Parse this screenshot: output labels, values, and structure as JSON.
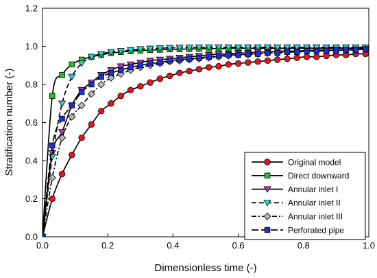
{
  "chart_data": {
    "type": "line",
    "xlabel": "Dimensionless time (-)",
    "ylabel": "Stratification number (-)",
    "xlim": [
      0.0,
      1.0
    ],
    "ylim": [
      0.0,
      1.2
    ],
    "xticks": [
      0.0,
      0.2,
      0.4,
      0.6,
      0.8,
      1.0
    ],
    "xtick_labels": [
      "0.0",
      "0.2",
      "0.4",
      "0.6",
      "0.8",
      "1.0"
    ],
    "yticks": [
      0.0,
      0.2,
      0.4,
      0.6,
      0.8,
      1.0,
      1.2
    ],
    "ytick_labels": [
      "0.0",
      "0.2",
      "0.4",
      "0.6",
      "0.8",
      "1.0",
      "1.2"
    ],
    "grid": false,
    "legend_position": "bottom-right",
    "series": [
      {
        "name": "Original model",
        "color": "#e8141c",
        "marker": "circle",
        "line_style": "solid",
        "x": [
          0.0,
          0.03,
          0.06,
          0.09,
          0.12,
          0.15,
          0.18,
          0.21,
          0.24,
          0.27,
          0.3,
          0.33,
          0.36,
          0.39,
          0.42,
          0.45,
          0.48,
          0.51,
          0.54,
          0.57,
          0.6,
          0.63,
          0.66,
          0.69,
          0.72,
          0.75,
          0.78,
          0.81,
          0.84,
          0.87,
          0.9,
          0.93,
          0.96,
          0.99
        ],
        "y": [
          0.0,
          0.2,
          0.33,
          0.43,
          0.52,
          0.59,
          0.66,
          0.7,
          0.74,
          0.77,
          0.79,
          0.81,
          0.83,
          0.845,
          0.86,
          0.87,
          0.88,
          0.89,
          0.895,
          0.905,
          0.91,
          0.915,
          0.92,
          0.925,
          0.93,
          0.935,
          0.94,
          0.945,
          0.945,
          0.95,
          0.955,
          0.955,
          0.96,
          0.96
        ]
      },
      {
        "name": "Direct downward",
        "color": "#22c422",
        "marker": "square",
        "line_style": "solid",
        "x": [
          0.0,
          0.03,
          0.06,
          0.09,
          0.12,
          0.15,
          0.18,
          0.21,
          0.24,
          0.27,
          0.3,
          0.33,
          0.36,
          0.39,
          0.42,
          0.45,
          0.48,
          0.51,
          0.54,
          0.57,
          0.6,
          0.63,
          0.66,
          0.69,
          0.72,
          0.75,
          0.78,
          0.81,
          0.84,
          0.87,
          0.9,
          0.93,
          0.96,
          0.99
        ],
        "y": [
          0.0,
          0.74,
          0.85,
          0.905,
          0.93,
          0.945,
          0.955,
          0.965,
          0.97,
          0.975,
          0.978,
          0.98,
          0.982,
          0.984,
          0.985,
          0.986,
          0.987,
          0.988,
          0.988,
          0.989,
          0.99,
          0.99,
          0.99,
          0.99,
          0.99,
          0.99,
          0.99,
          0.99,
          0.99,
          0.99,
          0.99,
          0.99,
          0.99,
          0.99
        ]
      },
      {
        "name": "Annular inlet I",
        "color": "#b638b6",
        "marker": "triangle-down",
        "line_style": "solid",
        "x": [
          0.0,
          0.03,
          0.06,
          0.09,
          0.12,
          0.15,
          0.18,
          0.21,
          0.24,
          0.27,
          0.3,
          0.33,
          0.36,
          0.39,
          0.42,
          0.45,
          0.48,
          0.51,
          0.54,
          0.57,
          0.6,
          0.63,
          0.66,
          0.69,
          0.72,
          0.75,
          0.78,
          0.81,
          0.84,
          0.87,
          0.9,
          0.93,
          0.96,
          0.99
        ],
        "y": [
          0.0,
          0.44,
          0.55,
          0.69,
          0.77,
          0.81,
          0.85,
          0.875,
          0.895,
          0.905,
          0.915,
          0.925,
          0.93,
          0.935,
          0.94,
          0.945,
          0.95,
          0.955,
          0.96,
          0.96,
          0.965,
          0.965,
          0.97,
          0.97,
          0.975,
          0.975,
          0.975,
          0.978,
          0.98,
          0.98,
          0.98,
          0.982,
          0.983,
          0.985
        ]
      },
      {
        "name": "Annular inlet II",
        "color": "#27d3e0",
        "marker": "triangle-down",
        "line_style": "dash",
        "x": [
          0.0,
          0.03,
          0.06,
          0.09,
          0.12,
          0.15,
          0.18,
          0.21,
          0.24,
          0.27,
          0.3,
          0.33,
          0.36,
          0.39,
          0.42,
          0.45,
          0.48,
          0.51,
          0.54,
          0.57,
          0.6,
          0.63,
          0.66,
          0.69,
          0.72,
          0.75,
          0.78,
          0.81,
          0.84,
          0.87,
          0.9,
          0.93,
          0.96,
          0.99
        ],
        "y": [
          0.0,
          0.42,
          0.7,
          0.84,
          0.91,
          0.945,
          0.96,
          0.97,
          0.975,
          0.98,
          0.985,
          0.988,
          0.99,
          0.992,
          0.993,
          0.994,
          0.995,
          0.995,
          0.995,
          0.995,
          0.995,
          0.995,
          0.995,
          0.995,
          0.995,
          0.995,
          0.995,
          0.995,
          0.995,
          0.995,
          0.995,
          0.995,
          0.995,
          0.995
        ]
      },
      {
        "name": "Annular inlet III",
        "color": "#b8b8b8",
        "marker": "diamond",
        "line_style": "dash-dot",
        "x": [
          0.0,
          0.03,
          0.06,
          0.09,
          0.12,
          0.15,
          0.18,
          0.21,
          0.24,
          0.27,
          0.3,
          0.33,
          0.36,
          0.39,
          0.42,
          0.45,
          0.48,
          0.51,
          0.54,
          0.57,
          0.6,
          0.63,
          0.66,
          0.69,
          0.72,
          0.75,
          0.78,
          0.81,
          0.84,
          0.87,
          0.9,
          0.93,
          0.96,
          0.99
        ],
        "y": [
          0.0,
          0.31,
          0.52,
          0.63,
          0.69,
          0.75,
          0.8,
          0.835,
          0.855,
          0.875,
          0.89,
          0.9,
          0.91,
          0.92,
          0.925,
          0.93,
          0.935,
          0.94,
          0.945,
          0.95,
          0.955,
          0.955,
          0.96,
          0.965,
          0.965,
          0.97,
          0.97,
          0.975,
          0.975,
          0.978,
          0.98,
          0.98,
          0.982,
          0.985
        ]
      },
      {
        "name": "Perforated pipe",
        "color": "#1a2ed8",
        "marker": "square",
        "line_style": "long-dash",
        "x": [
          0.0,
          0.03,
          0.06,
          0.09,
          0.12,
          0.15,
          0.18,
          0.21,
          0.24,
          0.27,
          0.3,
          0.33,
          0.36,
          0.39,
          0.42,
          0.45,
          0.48,
          0.51,
          0.54,
          0.57,
          0.6,
          0.63,
          0.66,
          0.69,
          0.72,
          0.75,
          0.78,
          0.81,
          0.84,
          0.87,
          0.9,
          0.93,
          0.96,
          0.99
        ],
        "y": [
          0.0,
          0.48,
          0.62,
          0.69,
          0.76,
          0.8,
          0.84,
          0.86,
          0.875,
          0.89,
          0.9,
          0.91,
          0.915,
          0.925,
          0.93,
          0.935,
          0.94,
          0.945,
          0.95,
          0.955,
          0.955,
          0.96,
          0.96,
          0.965,
          0.965,
          0.97,
          0.97,
          0.975,
          0.975,
          0.975,
          0.978,
          0.98,
          0.98,
          0.985
        ]
      }
    ]
  }
}
